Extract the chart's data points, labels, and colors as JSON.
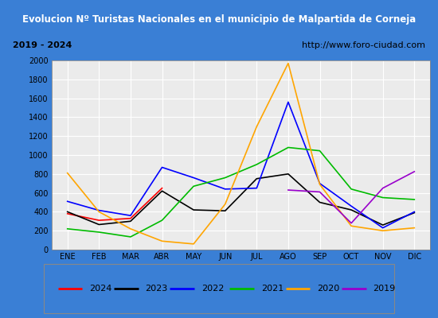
{
  "title": "Evolucion Nº Turistas Nacionales en el municipio de Malpartida de Corneja",
  "subtitle_left": "2019 - 2024",
  "subtitle_right": "http://www.foro-ciudad.com",
  "months": [
    "ENE",
    "FEB",
    "MAR",
    "ABR",
    "MAY",
    "JUN",
    "JUL",
    "AGO",
    "SEP",
    "OCT",
    "NOV",
    "DIC"
  ],
  "series": {
    "2024": [
      380,
      310,
      330,
      650,
      null,
      null,
      null,
      null,
      null,
      null,
      null,
      null
    ],
    "2023": [
      400,
      265,
      300,
      620,
      420,
      410,
      750,
      800,
      500,
      420,
      260,
      390
    ],
    "2022": [
      510,
      415,
      360,
      870,
      760,
      640,
      650,
      1560,
      700,
      460,
      230,
      400
    ],
    "2021": [
      220,
      185,
      135,
      310,
      670,
      760,
      900,
      1080,
      1045,
      640,
      550,
      530
    ],
    "2020": [
      810,
      400,
      220,
      90,
      60,
      480,
      1300,
      1970,
      690,
      250,
      200,
      230
    ],
    "2019": [
      null,
      null,
      null,
      null,
      null,
      null,
      null,
      630,
      610,
      280,
      650,
      825
    ]
  },
  "colors": {
    "2024": "#ff0000",
    "2023": "#000000",
    "2022": "#0000ff",
    "2021": "#00bb00",
    "2020": "#ffa500",
    "2019": "#9900cc"
  },
  "ylim": [
    0,
    2000
  ],
  "yticks": [
    0,
    200,
    400,
    600,
    800,
    1000,
    1200,
    1400,
    1600,
    1800,
    2000
  ],
  "title_bg": "#3a7fd5",
  "title_color": "#ffffff",
  "subtitle_bg": "#e8e8e8",
  "plot_bg": "#ebebeb",
  "grid_color": "#ffffff",
  "outer_border": "#3a7fd5",
  "inner_border": "#aaaaaa",
  "legend_bg": "#f5f5f5"
}
